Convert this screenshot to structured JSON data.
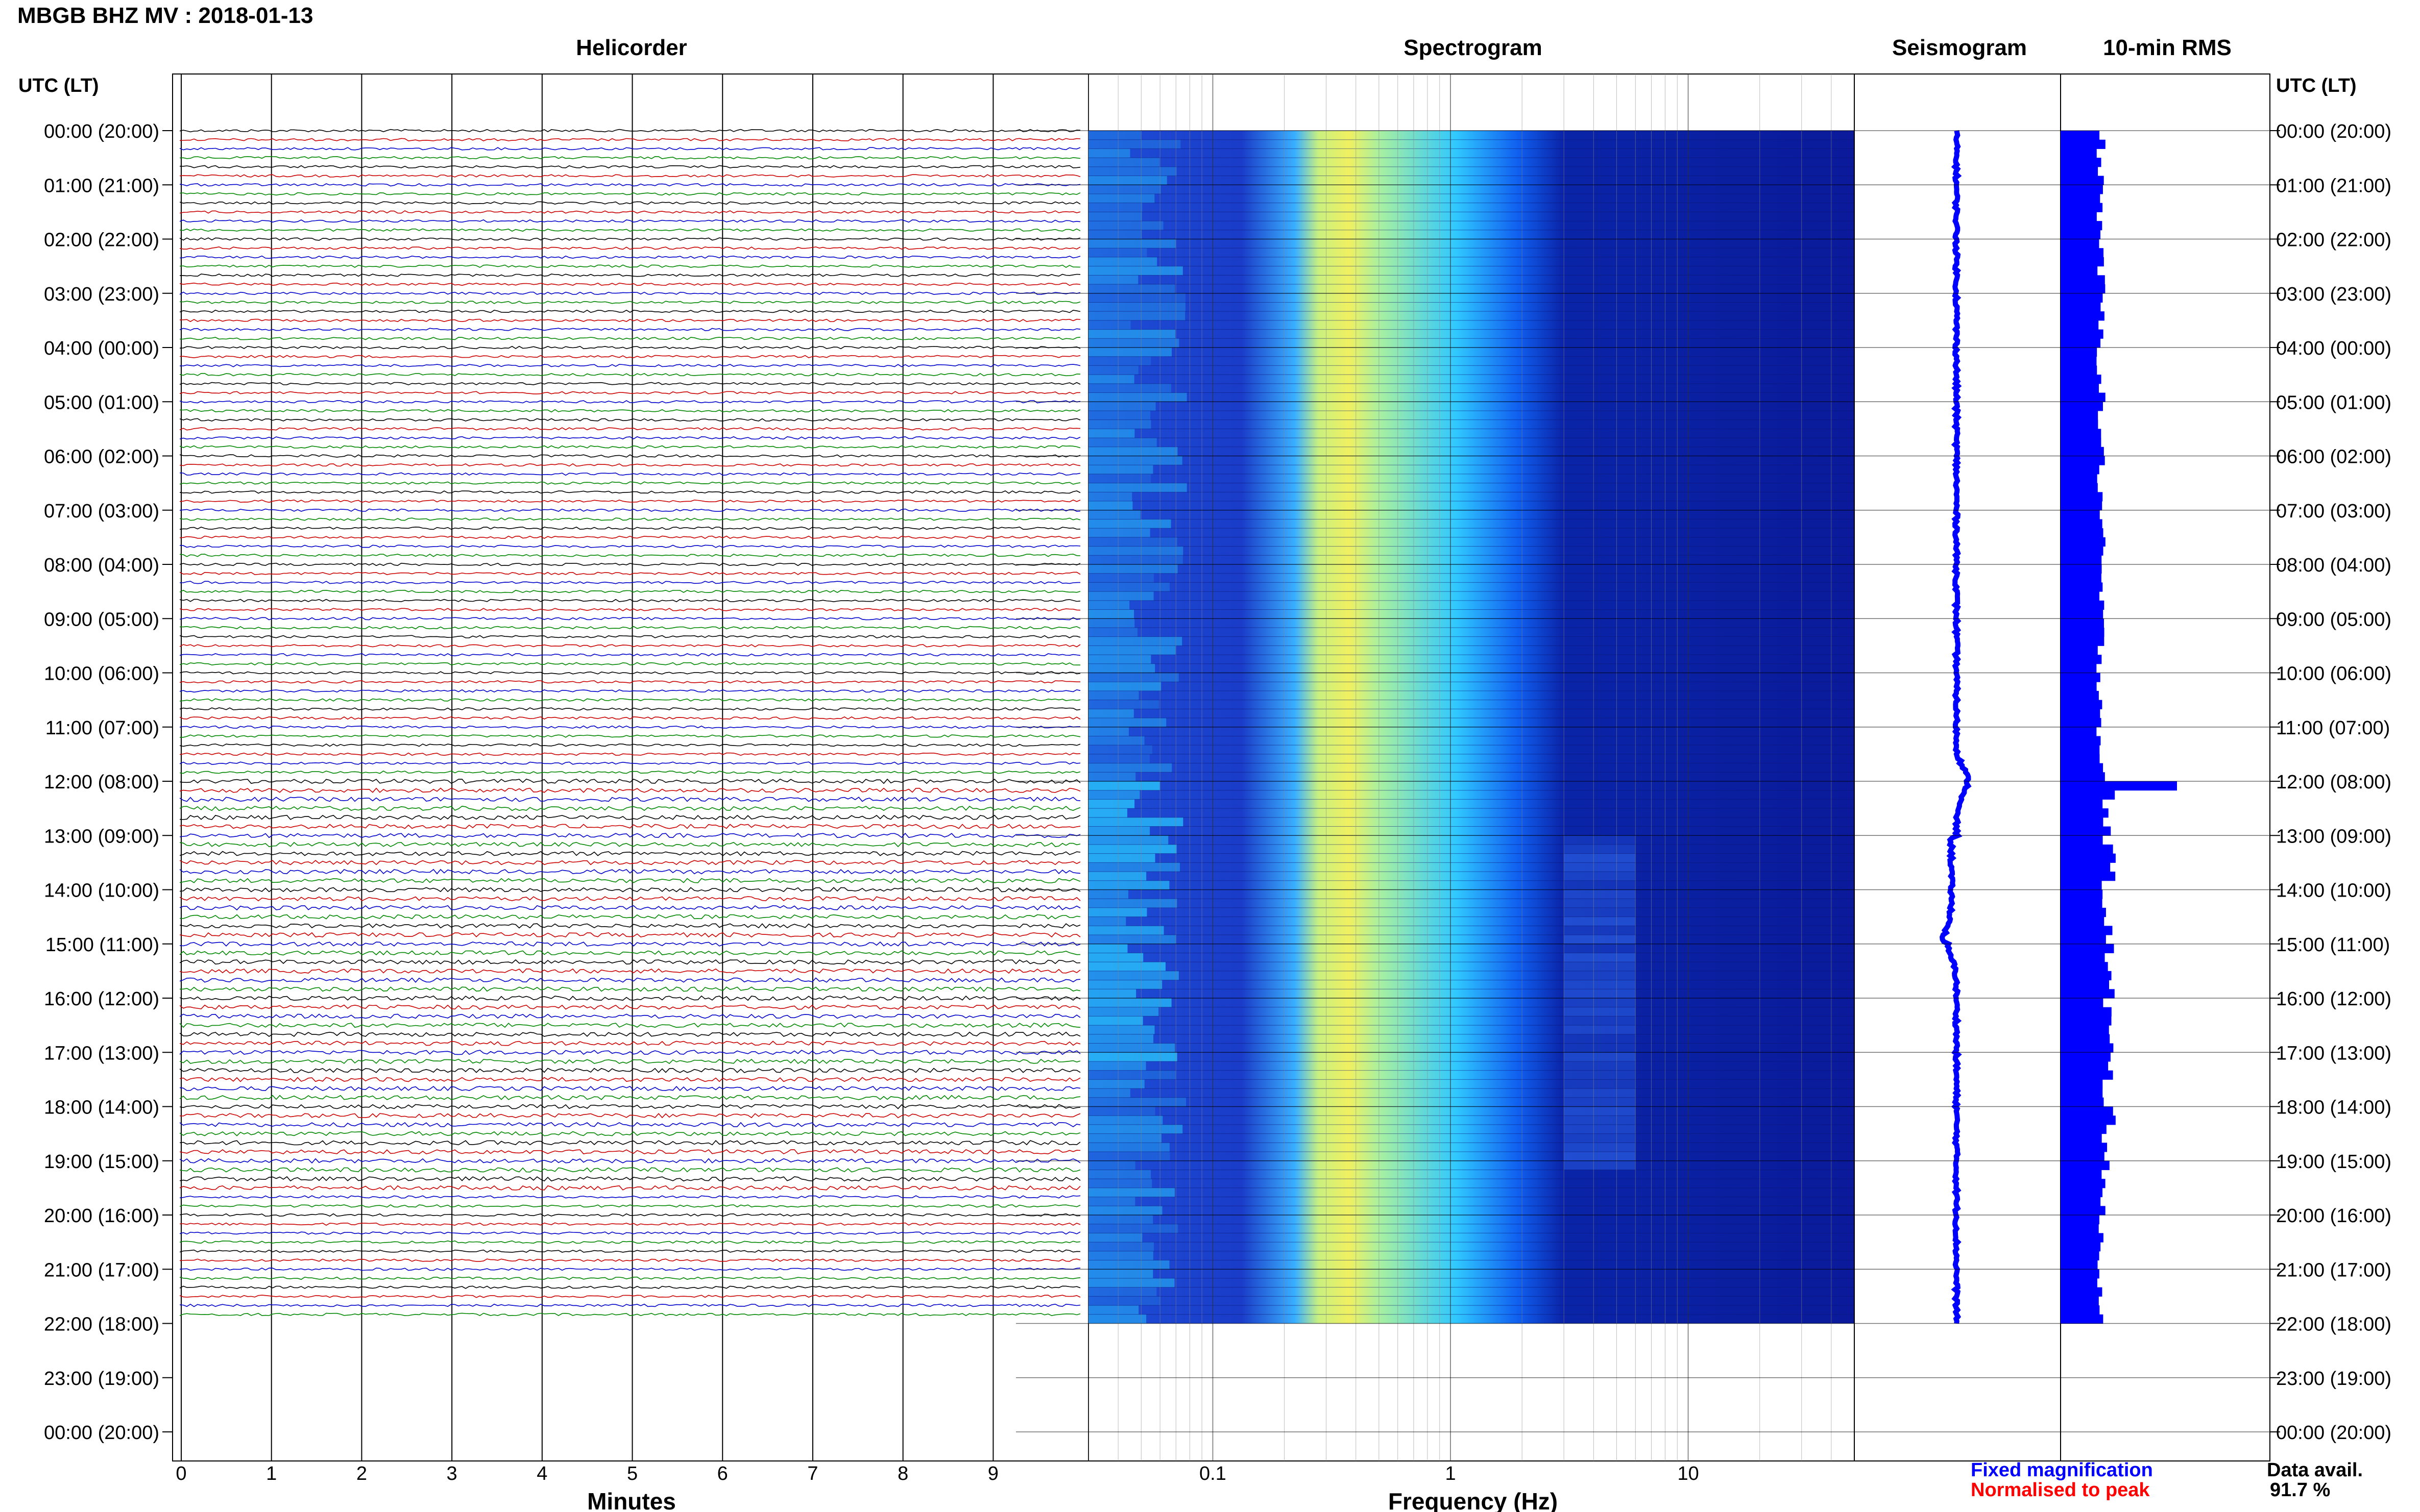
{
  "title": "MBGB BHZ MV : 2018-01-13",
  "panels": {
    "helicorder": "Helicorder",
    "spectrogram": "Spectrogram",
    "seismogram": "Seismogram",
    "rms": "10-min RMS"
  },
  "time_axis_label": "UTC (LT)",
  "time_labels": [
    "00:00 (20:00)",
    "01:00 (21:00)",
    "02:00 (22:00)",
    "03:00 (23:00)",
    "04:00 (00:00)",
    "05:00 (01:00)",
    "06:00 (02:00)",
    "07:00 (03:00)",
    "08:00 (04:00)",
    "09:00 (05:00)",
    "10:00 (06:00)",
    "11:00 (07:00)",
    "12:00 (08:00)",
    "13:00 (09:00)",
    "14:00 (10:00)",
    "15:00 (11:00)",
    "16:00 (12:00)",
    "17:00 (13:00)",
    "18:00 (14:00)",
    "19:00 (15:00)",
    "20:00 (16:00)",
    "21:00 (17:00)",
    "22:00 (18:00)",
    "23:00 (19:00)",
    "00:00 (20:00)"
  ],
  "legend": {
    "fixed": "Fixed magnification",
    "normalised": "Normalised to peak",
    "fixed_color": "#0000ff",
    "normalised_color": "#ff0000"
  },
  "data_avail": {
    "label": "Data avail.",
    "value": "91.7 %"
  },
  "colors": {
    "trace_cycle": [
      "#000000",
      "#cc0000",
      "#0000cc",
      "#008800"
    ],
    "spectrogram_low": "#0a1a9a",
    "spectrogram_high": "#e8f060",
    "seismogram": "#0000ff",
    "rms": "#0000ff"
  },
  "chart_data": [
    {
      "type": "line",
      "panel": "helicorder",
      "xlabel": "Minutes",
      "x_ticks": [
        "0",
        "1",
        "2",
        "3",
        "4",
        "5",
        "6",
        "7",
        "8",
        "9"
      ],
      "xlim": [
        0,
        10
      ],
      "lines_per_hour": 6,
      "data_hours": 22
    },
    {
      "type": "heatmap",
      "panel": "spectrogram",
      "xlabel": "Frequency (Hz)",
      "x_scale": "log",
      "xlim": [
        0.03,
        50
      ],
      "x_ticks": [
        "0.1",
        "1",
        "10"
      ],
      "peak_band_hz": [
        0.2,
        0.35
      ],
      "data_hours": 22
    },
    {
      "type": "line",
      "panel": "seismogram",
      "data_hours": 22,
      "event_hours": [
        12.0,
        15.0
      ]
    },
    {
      "type": "bar",
      "panel": "rms",
      "interval_minutes": 10,
      "data_hours": 22,
      "peak_hour": 12.0
    }
  ]
}
